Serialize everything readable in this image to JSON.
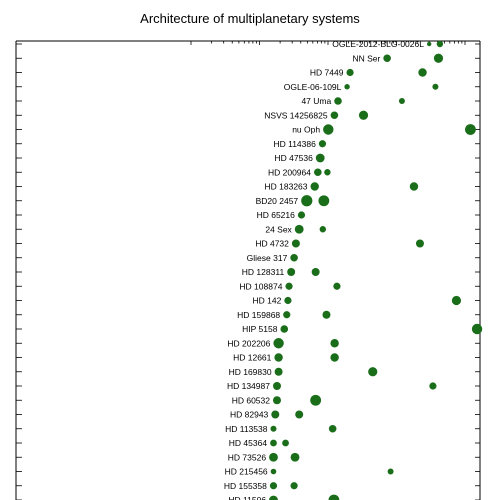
{
  "chart_data": {
    "type": "scatter",
    "title": "Architecture of multiplanetary systems",
    "xlabel": "",
    "ylabel": "",
    "x_scale": "log",
    "color": "#1a6e1a",
    "grid": false,
    "systems": [
      {
        "name": "OGLE-2012-BLG-0026L",
        "planets": [
          {
            "a": 0.3,
            "r": 2.2
          },
          {
            "a": 0.43,
            "r": 3.2
          }
        ]
      },
      {
        "name": "NN Ser",
        "planets": [
          {
            "a": 0.073,
            "r": 3.8
          },
          {
            "a": 0.41,
            "r": 4.6
          }
        ]
      },
      {
        "name": "HD 7449",
        "planets": [
          {
            "a": 0.021,
            "r": 3.6
          },
          {
            "a": 0.24,
            "r": 4.2
          }
        ]
      },
      {
        "name": "OGLE-06-109L",
        "planets": [
          {
            "a": 0.019,
            "r": 2.7
          },
          {
            "a": 0.37,
            "r": 3.0
          }
        ]
      },
      {
        "name": "47 Uma",
        "planets": [
          {
            "a": 0.014,
            "r": 3.8
          },
          {
            "a": 0.12,
            "r": 3.0
          }
        ]
      },
      {
        "name": "NSVS 14256825",
        "planets": [
          {
            "a": 0.0124,
            "r": 3.8
          },
          {
            "a": 0.033,
            "r": 4.6
          }
        ]
      },
      {
        "name": "nu Oph",
        "planets": [
          {
            "a": 0.0101,
            "r": 5.2
          },
          {
            "a": 1.2,
            "r": 5.4
          }
        ]
      },
      {
        "name": "HD 114386",
        "planets": [
          {
            "a": 0.0083,
            "r": 3.6
          }
        ]
      },
      {
        "name": "HD 47536",
        "planets": [
          {
            "a": 0.0077,
            "r": 4.4
          }
        ]
      },
      {
        "name": "HD 200964",
        "planets": [
          {
            "a": 0.0071,
            "r": 3.8
          },
          {
            "a": 0.0098,
            "r": 3.2
          }
        ]
      },
      {
        "name": "HD 183263",
        "planets": [
          {
            "a": 0.0064,
            "r": 4.2
          },
          {
            "a": 0.18,
            "r": 4.2
          }
        ]
      },
      {
        "name": "BD20 2457",
        "planets": [
          {
            "a": 0.0049,
            "r": 5.6
          },
          {
            "a": 0.0087,
            "r": 5.4
          }
        ]
      },
      {
        "name": "HD 65216",
        "planets": [
          {
            "a": 0.0041,
            "r": 3.6
          }
        ]
      },
      {
        "name": "24 Sex",
        "planets": [
          {
            "a": 0.0038,
            "r": 4.4
          },
          {
            "a": 0.0084,
            "r": 3.2
          }
        ]
      },
      {
        "name": "HD 4732",
        "planets": [
          {
            "a": 0.0034,
            "r": 4.0
          },
          {
            "a": 0.22,
            "r": 4.0
          }
        ]
      },
      {
        "name": "Gliese 317",
        "planets": [
          {
            "a": 0.0032,
            "r": 3.8
          }
        ]
      },
      {
        "name": "HD 128311",
        "planets": [
          {
            "a": 0.0029,
            "r": 4.0
          },
          {
            "a": 0.0066,
            "r": 4.0
          }
        ]
      },
      {
        "name": "HD 108874",
        "planets": [
          {
            "a": 0.0027,
            "r": 3.6
          },
          {
            "a": 0.0135,
            "r": 3.6
          }
        ]
      },
      {
        "name": "HD 142",
        "planets": [
          {
            "a": 0.0026,
            "r": 3.6
          },
          {
            "a": 0.75,
            "r": 4.6
          }
        ]
      },
      {
        "name": "HD 159868",
        "planets": [
          {
            "a": 0.0025,
            "r": 3.6
          },
          {
            "a": 0.0095,
            "r": 4.0
          }
        ]
      },
      {
        "name": "HIP 5158",
        "planets": [
          {
            "a": 0.0023,
            "r": 3.8
          },
          {
            "a": 1.5,
            "r": 5.2
          }
        ]
      },
      {
        "name": "HD 202206",
        "planets": [
          {
            "a": 0.0019,
            "r": 5.2
          },
          {
            "a": 0.0125,
            "r": 4.2
          }
        ]
      },
      {
        "name": "HD 12661",
        "planets": [
          {
            "a": 0.0019,
            "r": 4.2
          },
          {
            "a": 0.0125,
            "r": 4.2
          }
        ]
      },
      {
        "name": "HD 169830",
        "planets": [
          {
            "a": 0.0019,
            "r": 4.0
          },
          {
            "a": 0.045,
            "r": 4.6
          }
        ]
      },
      {
        "name": "HD 134987",
        "planets": [
          {
            "a": 0.0018,
            "r": 4.0
          },
          {
            "a": 0.34,
            "r": 3.6
          }
        ]
      },
      {
        "name": "HD 60532",
        "planets": [
          {
            "a": 0.0018,
            "r": 4.0
          },
          {
            "a": 0.0066,
            "r": 5.4
          }
        ]
      },
      {
        "name": "HD 82943",
        "planets": [
          {
            "a": 0.0017,
            "r": 4.0
          },
          {
            "a": 0.0038,
            "r": 4.0
          }
        ]
      },
      {
        "name": "HD 113538",
        "planets": [
          {
            "a": 0.0016,
            "r": 3.0
          },
          {
            "a": 0.0117,
            "r": 3.8
          }
        ]
      },
      {
        "name": "HD 45364",
        "planets": [
          {
            "a": 0.0016,
            "r": 3.4
          },
          {
            "a": 0.0024,
            "r": 3.4
          }
        ]
      },
      {
        "name": "HD 73526",
        "planets": [
          {
            "a": 0.0016,
            "r": 4.4
          },
          {
            "a": 0.0033,
            "r": 4.4
          }
        ]
      },
      {
        "name": "HD 215456",
        "planets": [
          {
            "a": 0.0016,
            "r": 2.8
          },
          {
            "a": 0.082,
            "r": 3.0
          }
        ]
      },
      {
        "name": "HD 155358",
        "planets": [
          {
            "a": 0.0016,
            "r": 3.6
          },
          {
            "a": 0.0032,
            "r": 3.6
          }
        ]
      },
      {
        "name": "HD 11506",
        "planets": [
          {
            "a": 0.0016,
            "r": 4.4
          },
          {
            "a": 0.0122,
            "r": 5.4
          }
        ]
      }
    ]
  }
}
